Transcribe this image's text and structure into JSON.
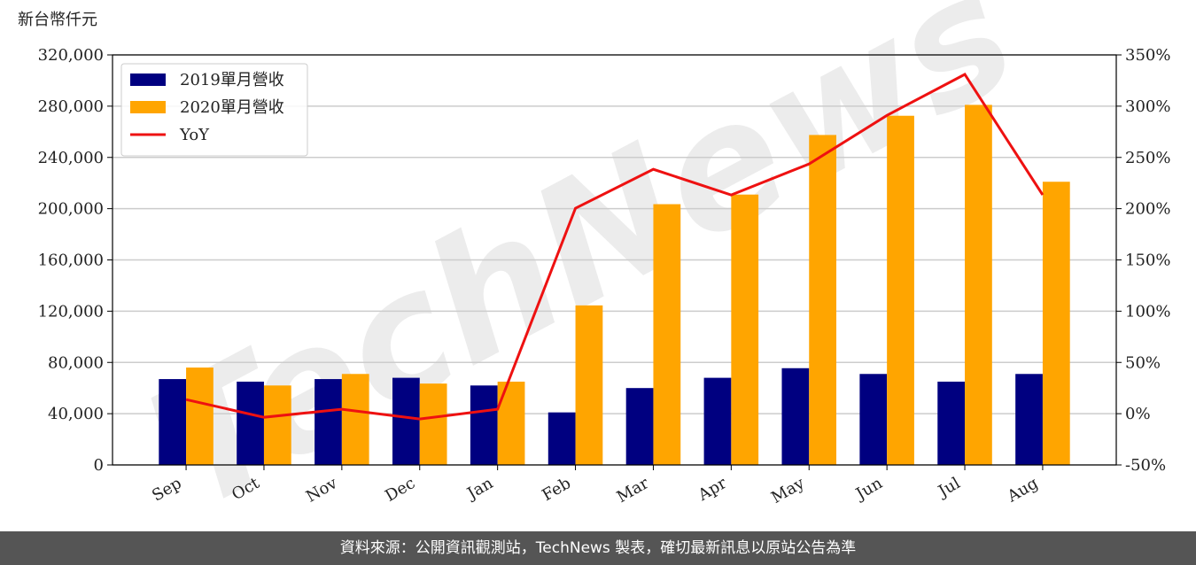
{
  "chart_data": {
    "type": "bar-line",
    "y_axis_title": "新台幣仟元",
    "watermark": "TechNews",
    "categories": [
      "Sep",
      "Oct",
      "Nov",
      "Dec",
      "Jan",
      "Feb",
      "Mar",
      "Apr",
      "May",
      "Jun",
      "Jul",
      "Aug"
    ],
    "series": [
      {
        "name": "2019單月營收",
        "type": "bar",
        "color": "#000080",
        "values": [
          67000,
          65000,
          67000,
          68000,
          62000,
          41000,
          60000,
          68000,
          75500,
          71000,
          65000,
          71000
        ]
      },
      {
        "name": "2020單月營收",
        "type": "bar",
        "color": "#ffa500",
        "values": [
          76000,
          62000,
          71000,
          63500,
          65000,
          124500,
          203500,
          211000,
          257500,
          272500,
          281000,
          221000
        ]
      },
      {
        "name": "YoY",
        "type": "line",
        "axis": "y2",
        "color": "#ee1111",
        "values": [
          13.8,
          -3.5,
          4.3,
          -5.2,
          4.3,
          200.4,
          238.4,
          213.4,
          243.6,
          291,
          331,
          213.4
        ]
      }
    ],
    "ylim": [
      0,
      320000
    ],
    "yticks": [
      0,
      {
        "value": 40000,
        "label": "40,000"
      },
      {
        "value": 80000,
        "label": "80,000"
      },
      {
        "value": 120000,
        "label": "120,000"
      },
      {
        "value": 160000,
        "label": "160,000"
      },
      {
        "value": 200000,
        "label": "200,000"
      },
      {
        "value": 240000,
        "label": "240,000"
      },
      {
        "value": 280000,
        "label": "280,000"
      },
      {
        "value": 320000,
        "label": "320,000"
      }
    ],
    "y2lim": [
      -50,
      350
    ],
    "y2ticks": [
      {
        "value": -50,
        "label": "-50%"
      },
      {
        "value": 0,
        "label": "0%"
      },
      {
        "value": 50,
        "label": "50%"
      },
      {
        "value": 100,
        "label": "100%"
      },
      {
        "value": 150,
        "label": "150%"
      },
      {
        "value": 200,
        "label": "200%"
      },
      {
        "value": 250,
        "label": "250%"
      },
      {
        "value": 300,
        "label": "300%"
      },
      {
        "value": 350,
        "label": "350%"
      }
    ],
    "grid": true,
    "legend": "upper left",
    "footer": "資料來源：公開資訊觀測站，TechNews 製表，確切最新訊息以原站公告為準"
  }
}
